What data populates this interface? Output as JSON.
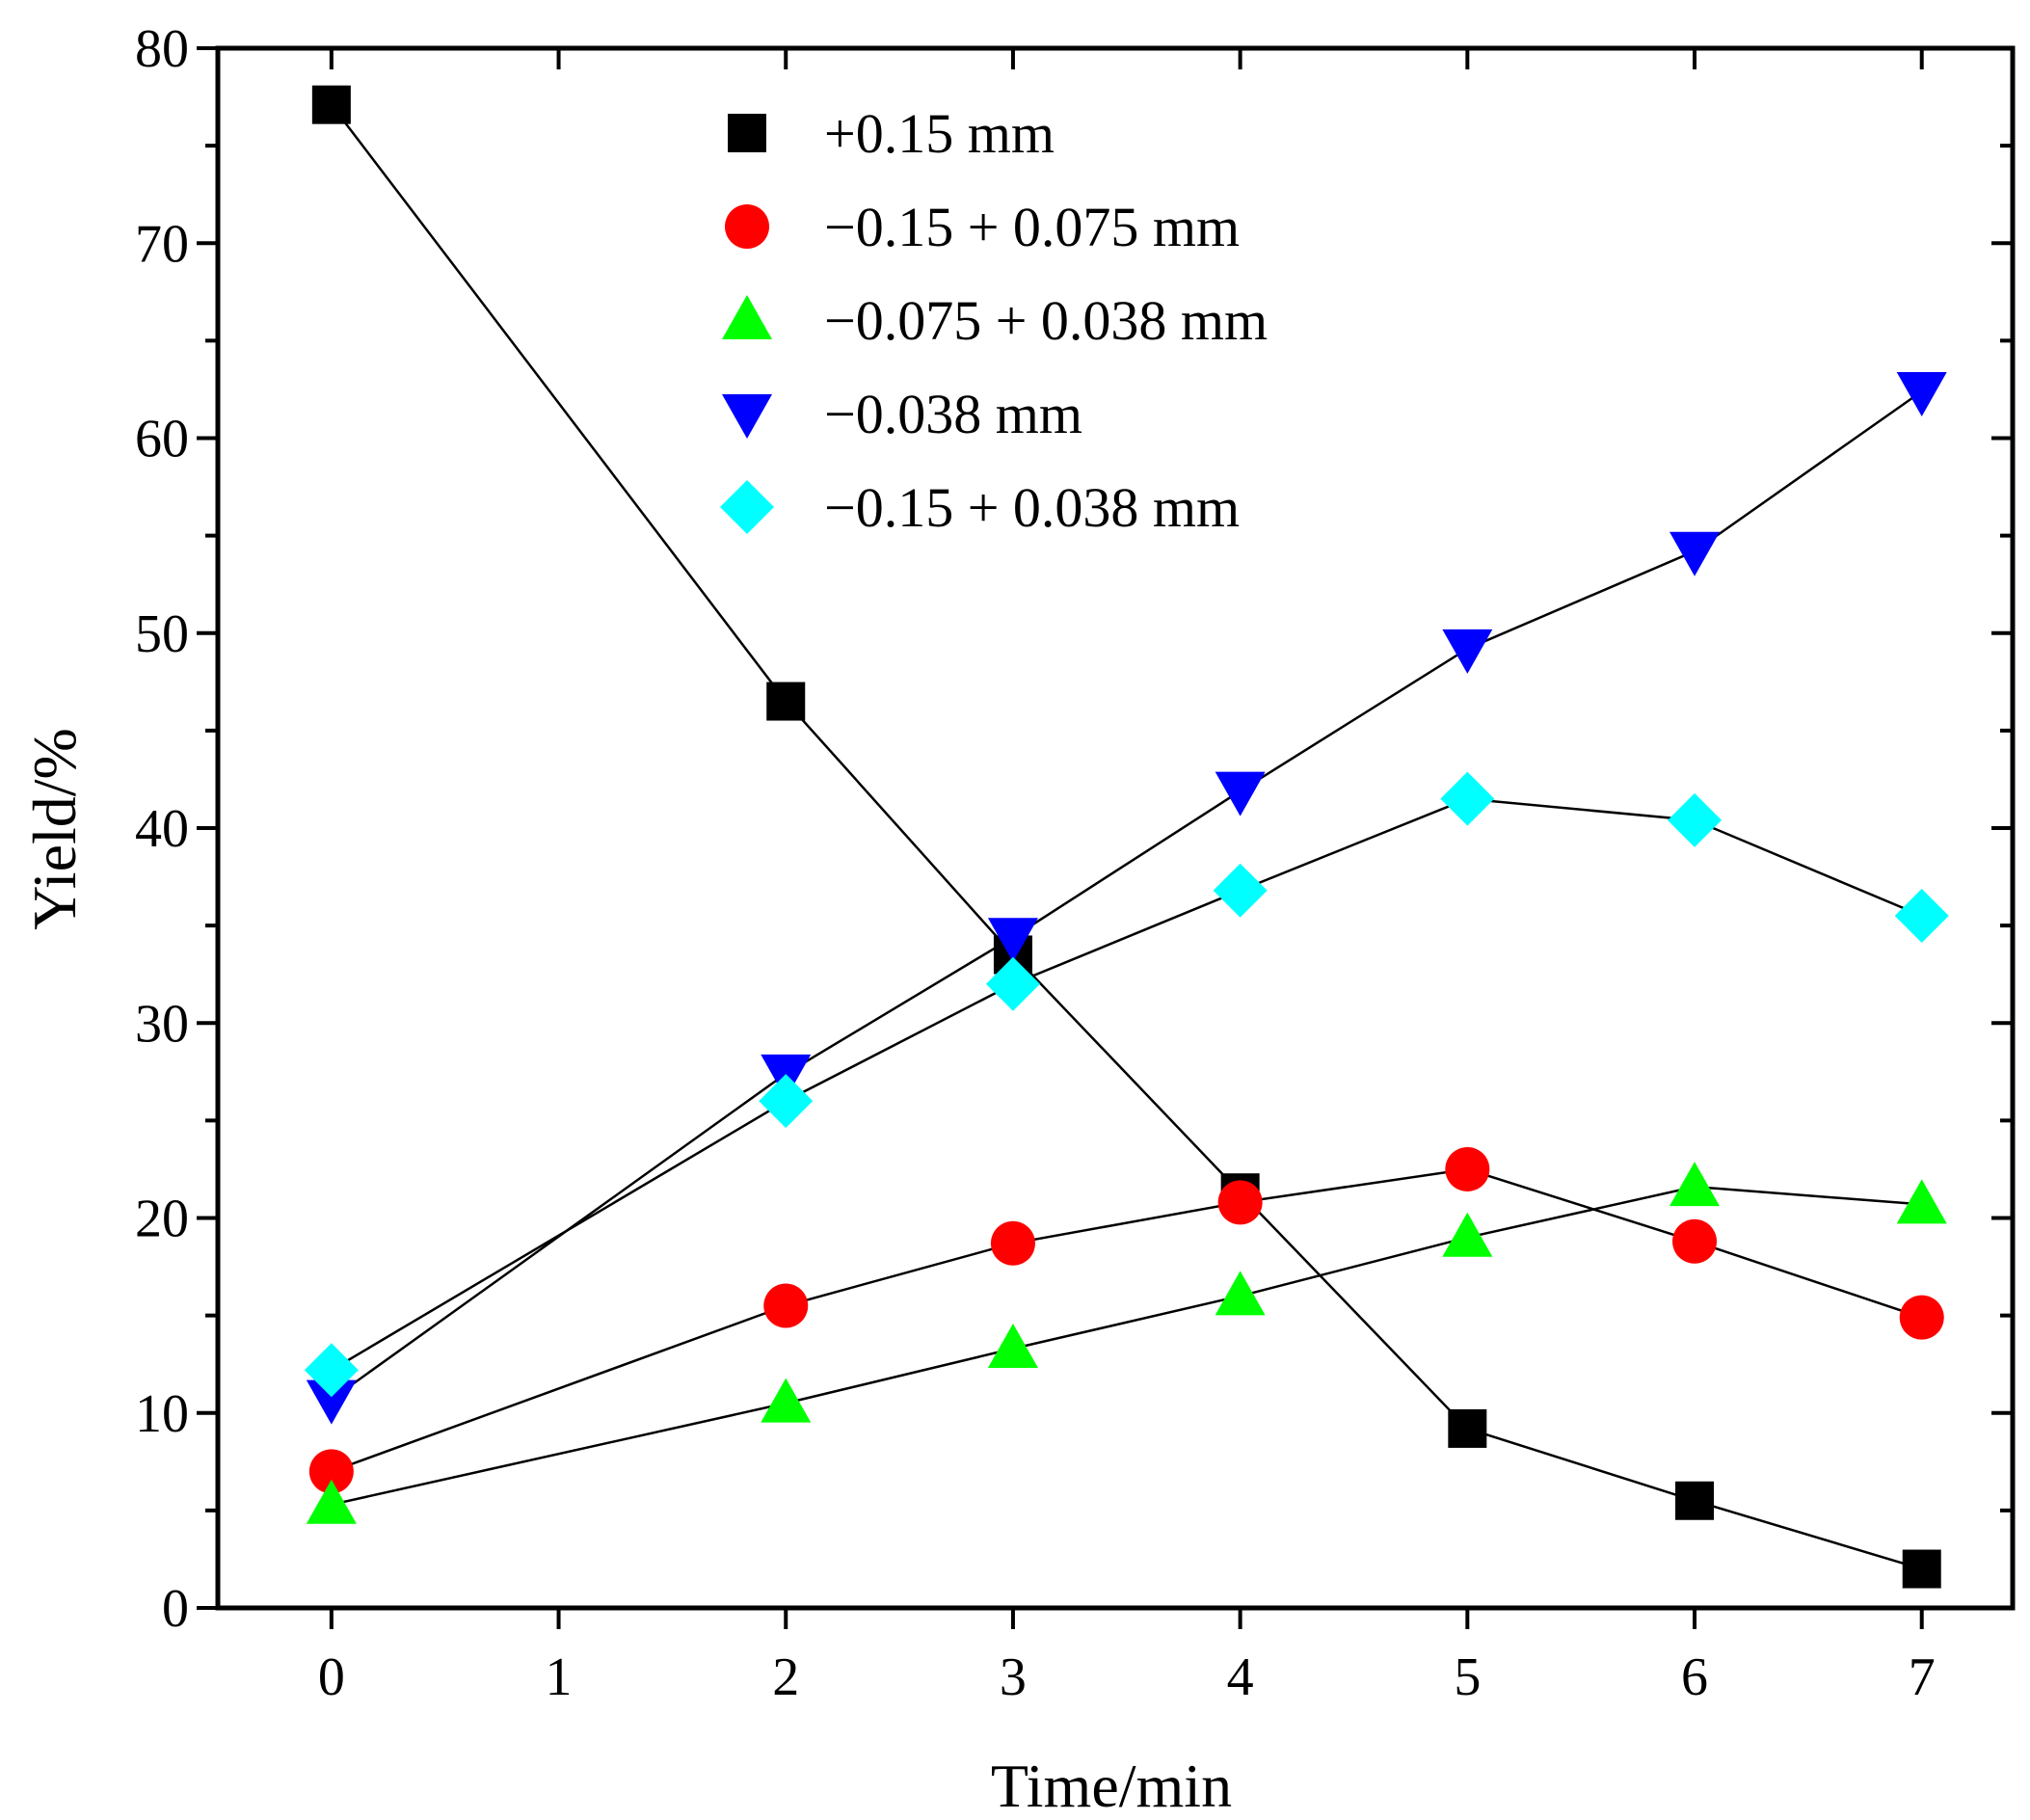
{
  "chart_data": {
    "type": "line",
    "title": "",
    "xlabel": "Time/min",
    "ylabel": "Yield/%",
    "ylim": [
      0,
      80
    ],
    "y_ticks": [
      0,
      10,
      20,
      30,
      40,
      50,
      60,
      70,
      80
    ],
    "x_tick_labels": [
      "0",
      "1",
      "2",
      "3",
      "4",
      "5",
      "6",
      "7"
    ],
    "x_tick_positions": [
      0,
      1,
      2,
      3,
      4,
      5,
      6,
      7
    ],
    "x": [
      0,
      2,
      3,
      4,
      5,
      6,
      7
    ],
    "legend_position": "top-center",
    "series": [
      {
        "name": "+0.15 mm",
        "marker": "square",
        "color": "#000000",
        "values": [
          77.1,
          46.5,
          33.5,
          21.3,
          9.2,
          5.5,
          2.0
        ]
      },
      {
        "name": "−0.15 + 0.075 mm",
        "marker": "circle",
        "color": "#ff0000",
        "values": [
          7.0,
          15.5,
          18.7,
          20.8,
          22.5,
          18.8,
          14.9
        ]
      },
      {
        "name": "−0.075 + 0.038 mm",
        "marker": "triangle-up",
        "color": "#00ff00",
        "values": [
          5.3,
          10.5,
          13.3,
          16.0,
          19.0,
          21.6,
          20.7
        ]
      },
      {
        "name": "−0.038 mm",
        "marker": "triangle-down",
        "color": "#0000ff",
        "values": [
          10.7,
          27.4,
          34.4,
          41.9,
          49.2,
          54.2,
          62.4
        ]
      },
      {
        "name": "−0.15 + 0.038 mm",
        "marker": "diamond",
        "color": "#00ffff",
        "values": [
          12.2,
          26.0,
          32.0,
          36.8,
          41.5,
          40.4,
          35.5
        ]
      }
    ]
  }
}
